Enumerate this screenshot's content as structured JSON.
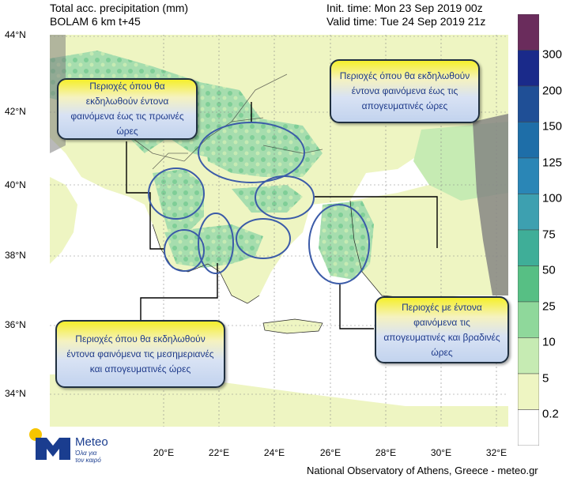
{
  "header": {
    "title_line1": "Total acc. precipitation (mm)",
    "title_line2": "BOLAM 6 km t+45",
    "init_time": "Init. time: Mon 23 Sep 2019 00z",
    "valid_time": "Valid time: Tue 24 Sep 2019 21z"
  },
  "axes": {
    "lat_labels": [
      "44°N",
      "42°N",
      "40°N",
      "38°N",
      "36°N",
      "34°N"
    ],
    "lon_labels": [
      "20°E",
      "22°E",
      "24°E",
      "26°E",
      "28°E",
      "30°E",
      "32°E"
    ]
  },
  "colorbar": {
    "labels": [
      "300",
      "200",
      "150",
      "125",
      "100",
      "75",
      "50",
      "25",
      "10",
      "5",
      "0.2"
    ],
    "colors": [
      "#6a2c5c",
      "#1a2a8a",
      "#1f4f96",
      "#1e6ea8",
      "#2a86b6",
      "#3da0b0",
      "#3fae98",
      "#57bf84",
      "#8fd89b",
      "#c6ebb3",
      "#eef5c2",
      "#ffffff"
    ]
  },
  "annotations": {
    "morning": "Περιοχές όπου θα εκδηλωθούν έντονα φαινόμενα έως τις πρωινές ώρες",
    "afternoon": "Περιοχές όπου θα εκδηλωθούν έντονα φαινόμενα έως τις απογευματινές ώρες",
    "midday": "Περιοχές όπου θα εκδηλωθούν έντονα φαινόμενα τις μεσημεριανές και απογευματινές ώρες",
    "evening": "Περιοχές με έντονα φαινόμενα τις απογευματινές και βραδινές ώρες"
  },
  "logo": {
    "name": "Meteo",
    "tagline_line1": "Όλα για",
    "tagline_line2": "τον καιρό"
  },
  "footer": "National Observatory of Athens, Greece - meteo.gr",
  "colors": {
    "sea": "#ffffff",
    "land": "#eef5c2",
    "outside_domain": "#7f7f7f",
    "ellipse_stroke": "#3b5ba8",
    "callout_text": "#1e3a8a"
  }
}
